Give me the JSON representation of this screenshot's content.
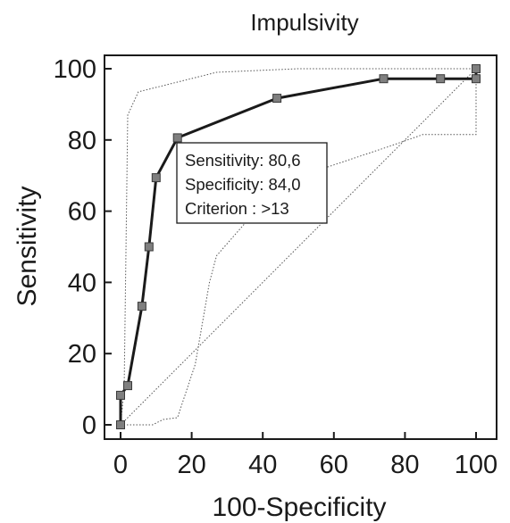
{
  "chart_data": {
    "type": "line",
    "title": "Impulsivity",
    "xlabel": "100-Specificity",
    "ylabel": "Sensitivity",
    "xlim": [
      0,
      100
    ],
    "ylim": [
      0,
      100
    ],
    "xticks": [
      "0",
      "20",
      "40",
      "60",
      "80",
      "100"
    ],
    "yticks": [
      "0",
      "20",
      "40",
      "60",
      "80",
      "100"
    ],
    "grid": false,
    "series": [
      {
        "role": "roc-curve",
        "x": [
          0,
          0,
          2,
          6,
          8,
          10,
          16,
          44,
          74,
          90,
          100,
          100
        ],
        "y": [
          0,
          8.3,
          11,
          33.3,
          50,
          69.4,
          80.6,
          91.7,
          97.2,
          97.2,
          97.2,
          100
        ]
      },
      {
        "role": "confidence-bound-upper",
        "x": [
          0,
          1,
          2,
          5,
          27,
          50,
          100
        ],
        "y": [
          0,
          10,
          87,
          93.5,
          99,
          100,
          100
        ]
      },
      {
        "role": "confidence-bound-lower",
        "x": [
          0,
          9,
          12,
          16,
          21,
          25,
          27,
          45,
          75,
          85,
          100,
          100
        ],
        "y": [
          0,
          0,
          1.5,
          2,
          17,
          40,
          47.5,
          68,
          78,
          81.5,
          81.5,
          100
        ]
      },
      {
        "role": "reference-diagonal",
        "x": [
          0,
          100
        ],
        "y": [
          0,
          100
        ]
      }
    ],
    "annotation": {
      "lines": [
        "Sensitivity: 80,6",
        "Specificity: 84,0",
        "Criterion : >13"
      ]
    },
    "colors": {
      "curve": "#1a1a1a",
      "marker_fill": "#7f7f7f",
      "marker_stroke": "#3a3a3a",
      "bounds": "#555555"
    }
  }
}
